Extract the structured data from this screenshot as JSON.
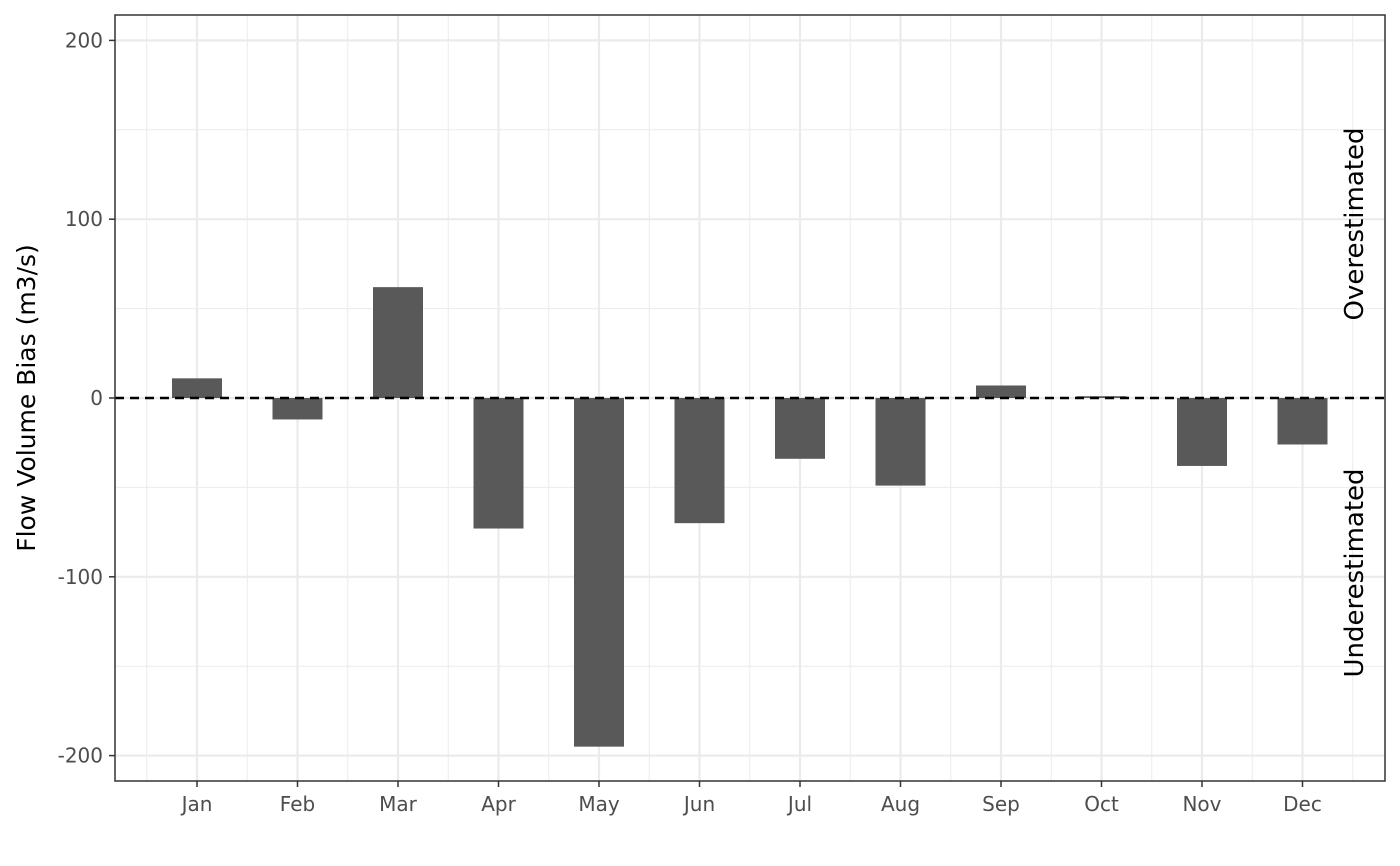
{
  "chart_data": {
    "type": "bar",
    "title": "",
    "xlabel": "",
    "ylabel": "Flow Volume Bias (m3/s)",
    "categories": [
      "Jan",
      "Feb",
      "Mar",
      "Apr",
      "May",
      "Jun",
      "Jul",
      "Aug",
      "Sep",
      "Oct",
      "Nov",
      "Dec"
    ],
    "values": [
      11,
      -12,
      62,
      -73,
      -195,
      -70,
      -34,
      -49,
      7,
      1,
      -38,
      -26
    ],
    "ylim": [
      -214,
      214
    ],
    "yticks": [
      -200,
      -100,
      0,
      100,
      200
    ],
    "ytick_labels": [
      "-200",
      "-100",
      "0",
      "100",
      "200"
    ],
    "grid": true,
    "reference_line": {
      "y": 0,
      "style": "dashed"
    },
    "annotations": {
      "over": "Overestimated",
      "under": "Underestimated"
    },
    "colors": {
      "bar": "#595959",
      "grid": "#ebebeb",
      "border": "#333333",
      "reference_line": "#000000"
    }
  }
}
